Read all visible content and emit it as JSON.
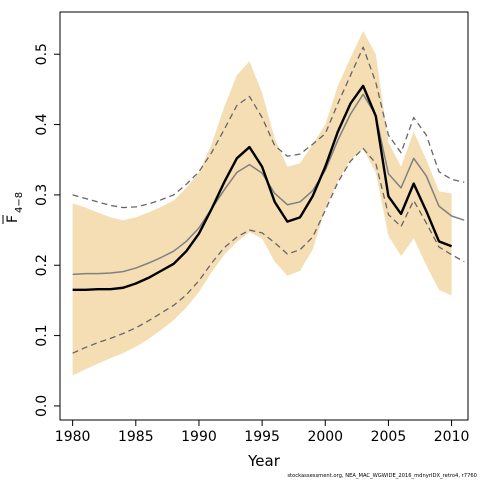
{
  "chart_data": {
    "type": "line",
    "title": "",
    "xlabel": "Year",
    "ylabel_main": "F",
    "ylabel_sub": "4−8",
    "xlim": [
      1979,
      2011.3
    ],
    "ylim": [
      -0.02,
      0.56
    ],
    "xticks": [
      1980,
      1985,
      1990,
      1995,
      2000,
      2005,
      2010
    ],
    "xtick_labels": [
      "1980",
      "1985",
      "1990",
      "1995",
      "2000",
      "2005",
      "2010"
    ],
    "yticks": [
      0.0,
      0.1,
      0.2,
      0.3,
      0.4,
      0.5
    ],
    "ytick_labels": [
      "0.0",
      "0.1",
      "0.2",
      "0.3",
      "0.4",
      "0.5"
    ],
    "footer": "stockassessment.org, NEA_MAC_WGWIDE_2016_mdnyrIDX_retro4, r7760",
    "colors": {
      "band": "#f5deb3",
      "estimate": "#000000",
      "retro_line": "#808080",
      "retro_ci": "#666666"
    },
    "series": [
      {
        "role": "estimate",
        "x": [
          1980,
          1981,
          1982,
          1983,
          1984,
          1985,
          1986,
          1987,
          1988,
          1989,
          1990,
          1991,
          1992,
          1993,
          1994,
          1995,
          1996,
          1997,
          1998,
          1999,
          2000,
          2001,
          2002,
          2003,
          2004,
          2005,
          2006,
          2007,
          2008,
          2009,
          2010
        ],
        "values": [
          0.165,
          0.165,
          0.166,
          0.166,
          0.168,
          0.174,
          0.182,
          0.192,
          0.202,
          0.22,
          0.245,
          0.28,
          0.318,
          0.352,
          0.368,
          0.34,
          0.29,
          0.262,
          0.268,
          0.298,
          0.34,
          0.39,
          0.43,
          0.455,
          0.412,
          0.298,
          0.273,
          0.316,
          0.277,
          0.234,
          0.227
        ]
      },
      {
        "role": "ci_lower",
        "x": [
          1980,
          1981,
          1982,
          1983,
          1984,
          1985,
          1986,
          1987,
          1988,
          1989,
          1990,
          1991,
          1992,
          1993,
          1994,
          1995,
          1996,
          1997,
          1998,
          1999,
          2000,
          2001,
          2002,
          2003,
          2004,
          2005,
          2006,
          2007,
          2008,
          2009,
          2010
        ],
        "values": [
          0.043,
          0.052,
          0.06,
          0.068,
          0.075,
          0.084,
          0.095,
          0.108,
          0.122,
          0.14,
          0.162,
          0.19,
          0.215,
          0.233,
          0.247,
          0.238,
          0.205,
          0.185,
          0.192,
          0.222,
          0.28,
          0.32,
          0.35,
          0.365,
          0.332,
          0.242,
          0.213,
          0.238,
          0.2,
          0.165,
          0.157
        ]
      },
      {
        "role": "ci_upper",
        "x": [
          1980,
          1981,
          1982,
          1983,
          1984,
          1985,
          1986,
          1987,
          1988,
          1989,
          1990,
          1991,
          1992,
          1993,
          1994,
          1995,
          1996,
          1997,
          1998,
          1999,
          2000,
          2001,
          2002,
          2003,
          2004,
          2005,
          2006,
          2007,
          2008,
          2009,
          2010
        ],
        "values": [
          0.288,
          0.282,
          0.275,
          0.268,
          0.264,
          0.268,
          0.275,
          0.283,
          0.292,
          0.31,
          0.332,
          0.372,
          0.425,
          0.47,
          0.49,
          0.445,
          0.38,
          0.34,
          0.345,
          0.372,
          0.4,
          0.455,
          0.495,
          0.533,
          0.5,
          0.375,
          0.34,
          0.39,
          0.35,
          0.305,
          0.302
        ]
      },
      {
        "role": "retro_estimate",
        "x": [
          1980,
          1981,
          1982,
          1983,
          1984,
          1985,
          1986,
          1987,
          1988,
          1989,
          1990,
          1991,
          1992,
          1993,
          1994,
          1995,
          1996,
          1997,
          1998,
          1999,
          2000,
          2001,
          2002,
          2003,
          2004,
          2005,
          2006,
          2007,
          2008,
          2009,
          2010,
          2011
        ],
        "values": [
          0.187,
          0.188,
          0.188,
          0.189,
          0.191,
          0.196,
          0.203,
          0.211,
          0.22,
          0.234,
          0.253,
          0.28,
          0.307,
          0.332,
          0.343,
          0.331,
          0.302,
          0.286,
          0.29,
          0.306,
          0.335,
          0.378,
          0.415,
          0.443,
          0.413,
          0.33,
          0.31,
          0.352,
          0.327,
          0.284,
          0.27,
          0.264
        ]
      },
      {
        "role": "retro_ci_lower",
        "x": [
          1980,
          1981,
          1982,
          1983,
          1984,
          1985,
          1986,
          1987,
          1988,
          1989,
          1990,
          1991,
          1992,
          1993,
          1994,
          1995,
          1996,
          1997,
          1998,
          1999,
          2000,
          2001,
          2002,
          2003,
          2004,
          2005,
          2006,
          2007,
          2008,
          2009,
          2010,
          2011
        ],
        "values": [
          0.075,
          0.083,
          0.09,
          0.096,
          0.103,
          0.111,
          0.121,
          0.132,
          0.143,
          0.158,
          0.178,
          0.203,
          0.225,
          0.24,
          0.25,
          0.246,
          0.232,
          0.216,
          0.222,
          0.24,
          0.278,
          0.318,
          0.348,
          0.366,
          0.345,
          0.272,
          0.255,
          0.292,
          0.26,
          0.226,
          0.215,
          0.205
        ]
      },
      {
        "role": "retro_ci_upper",
        "x": [
          1980,
          1981,
          1982,
          1983,
          1984,
          1985,
          1986,
          1987,
          1988,
          1989,
          1990,
          1991,
          1992,
          1993,
          1994,
          1995,
          1996,
          1997,
          1998,
          1999,
          2000,
          2001,
          2002,
          2003,
          2004,
          2005,
          2006,
          2007,
          2008,
          2009,
          2010,
          2011
        ],
        "values": [
          0.3,
          0.295,
          0.29,
          0.285,
          0.282,
          0.283,
          0.287,
          0.293,
          0.3,
          0.315,
          0.333,
          0.36,
          0.393,
          0.427,
          0.44,
          0.41,
          0.37,
          0.355,
          0.358,
          0.372,
          0.387,
          0.43,
          0.47,
          0.51,
          0.46,
          0.385,
          0.36,
          0.41,
          0.385,
          0.333,
          0.322,
          0.318
        ]
      }
    ]
  }
}
